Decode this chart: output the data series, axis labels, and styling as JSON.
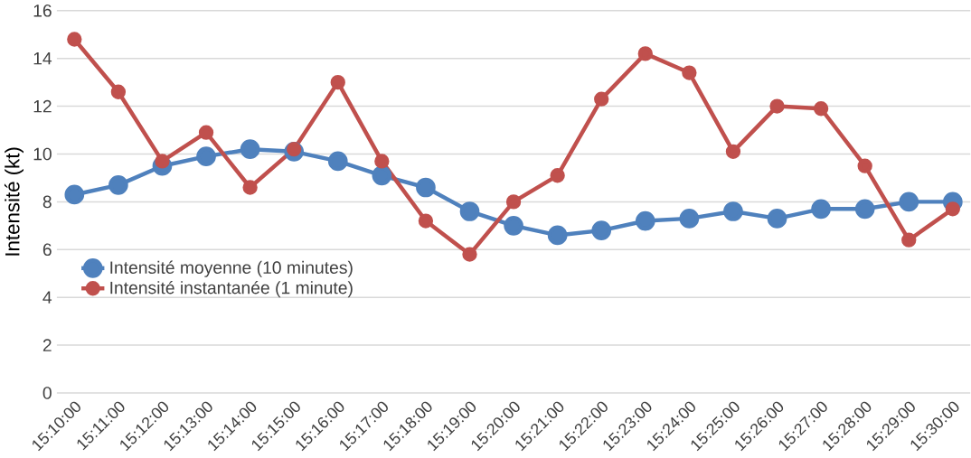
{
  "chart_data": {
    "type": "line",
    "ylabel": "Intensité (kt)",
    "categories": [
      "15:10:00",
      "15:11:00",
      "15:12:00",
      "15:13:00",
      "15:14:00",
      "15:15:00",
      "15:16:00",
      "15:17:00",
      "15:18:00",
      "15:19:00",
      "15:20:00",
      "15:21:00",
      "15:22:00",
      "15:23:00",
      "15:24:00",
      "15:25:00",
      "15:26:00",
      "15:27:00",
      "15:28:00",
      "15:29:00",
      "15:30:00"
    ],
    "series": [
      {
        "name": "Intensité moyenne (10 minutes)",
        "color": "#4f81bd",
        "values": [
          8.3,
          8.7,
          9.5,
          9.9,
          10.2,
          10.1,
          9.7,
          9.1,
          8.6,
          7.6,
          7.0,
          6.6,
          6.8,
          7.2,
          7.3,
          7.6,
          7.3,
          7.7,
          7.7,
          8.0,
          8.0
        ]
      },
      {
        "name": "Intensité instantanée (1 minute)",
        "color": "#c0504d",
        "values": [
          14.8,
          12.6,
          9.7,
          10.9,
          8.6,
          10.2,
          13.0,
          9.7,
          7.2,
          5.8,
          8.0,
          9.1,
          12.3,
          14.2,
          13.4,
          10.1,
          12.0,
          11.9,
          9.5,
          6.4,
          7.7
        ]
      }
    ],
    "ylim": [
      0,
      16
    ],
    "yticks": [
      0,
      2,
      4,
      6,
      8,
      10,
      12,
      14,
      16
    ],
    "grid": "y",
    "legend": "left",
    "marker": "circle",
    "line_style": "solid"
  }
}
